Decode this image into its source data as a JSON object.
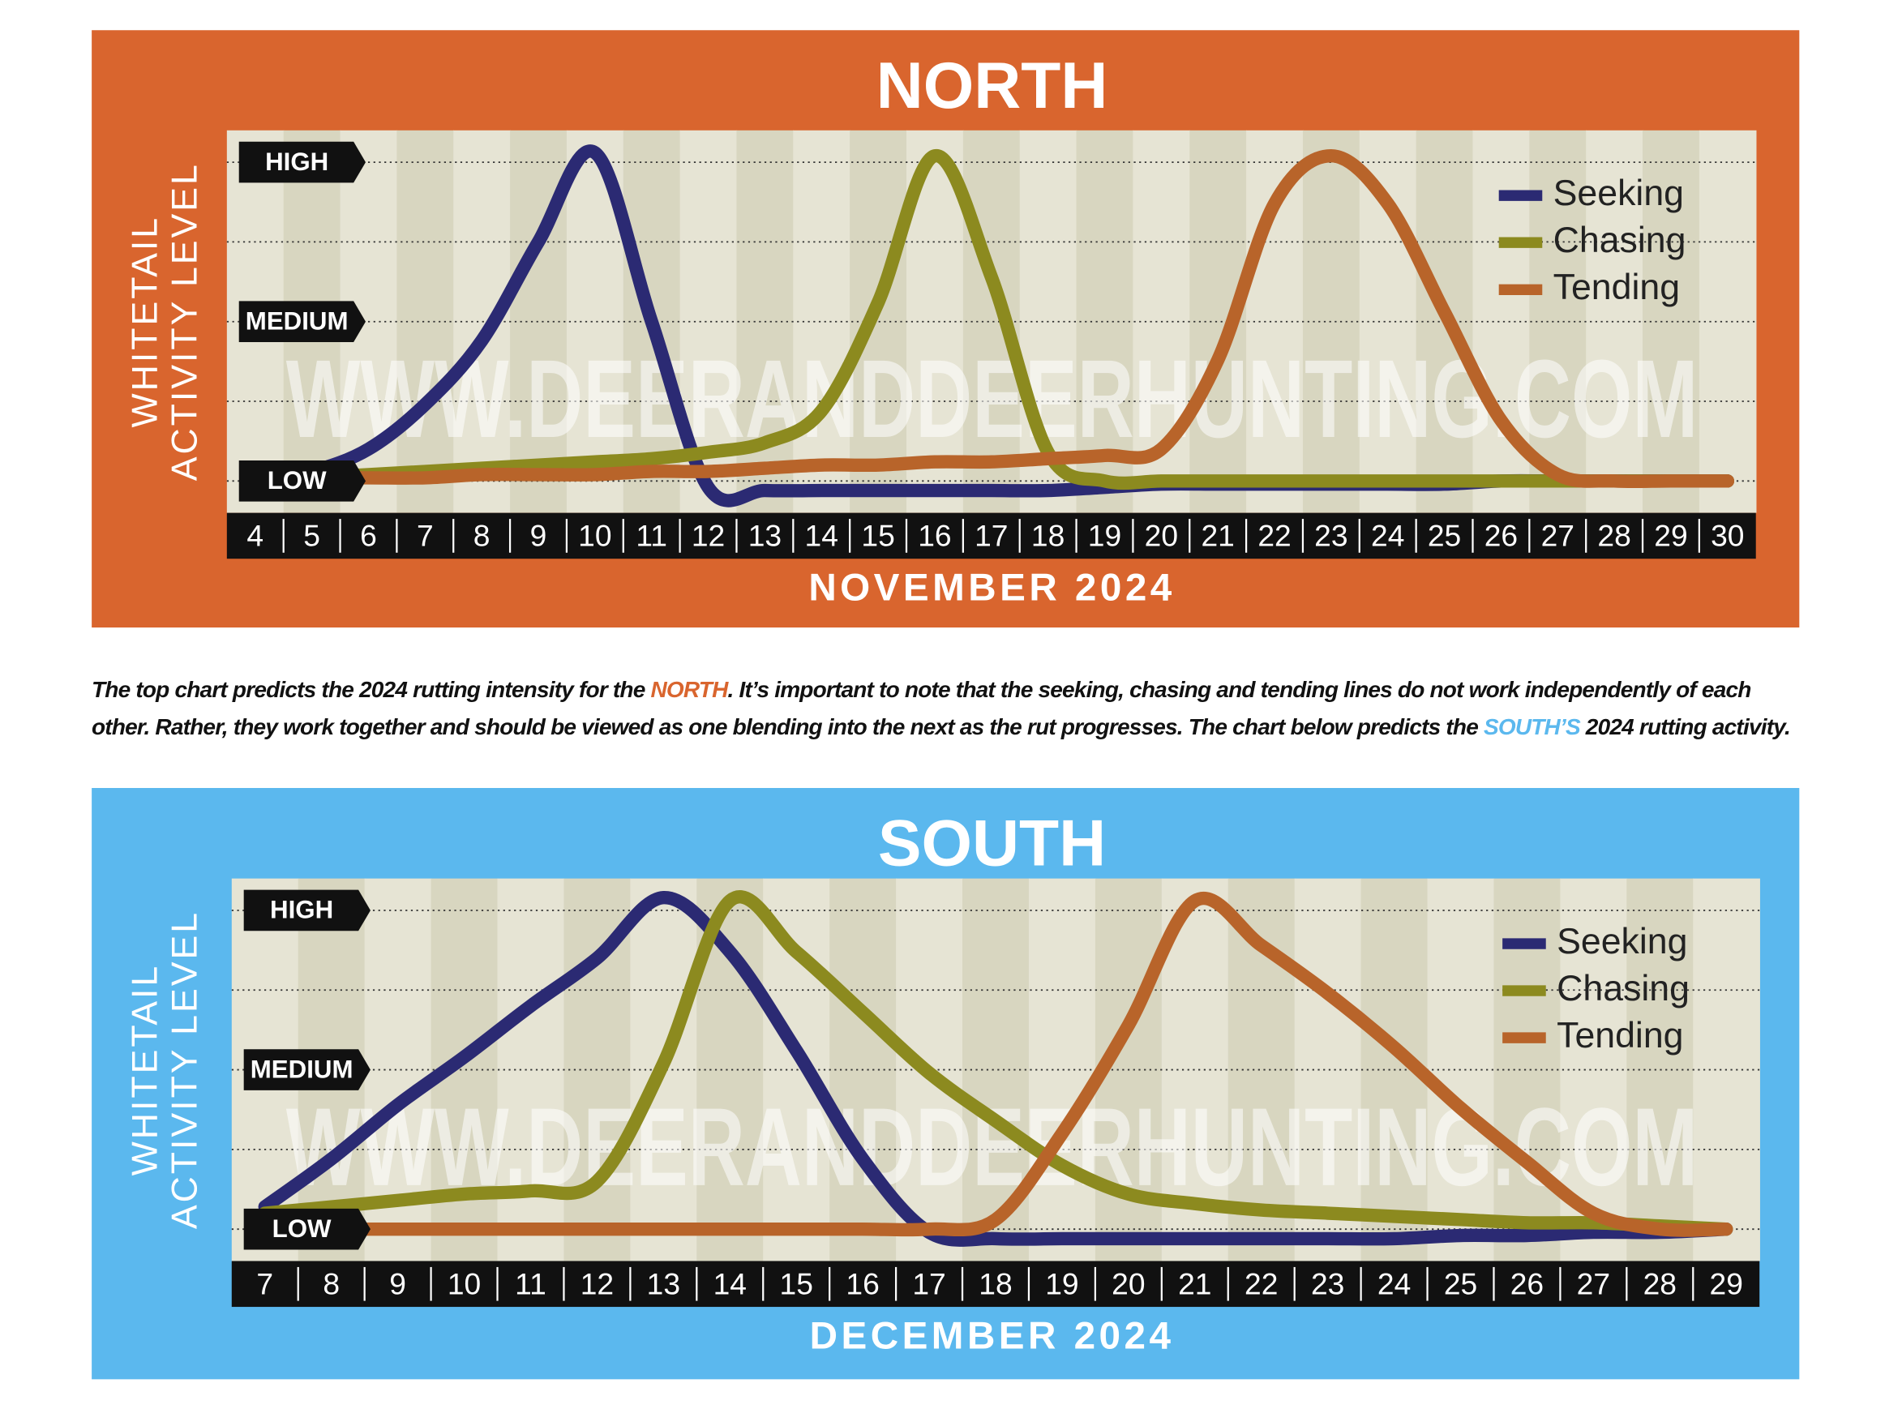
{
  "chart_data": [
    {
      "type": "line",
      "title": "NORTH",
      "background": "#d9652e",
      "ylabel": [
        "WHITETAIL",
        "ACTIVITY LEVEL"
      ],
      "xlabel": "NOVEMBER 2024",
      "watermark": "WWW.DEERANDDEERHUNTING.COM",
      "x": [
        4,
        5,
        6,
        7,
        8,
        9,
        10,
        11,
        12,
        13,
        14,
        15,
        16,
        17,
        18,
        19,
        20,
        21,
        22,
        23,
        24,
        25,
        26,
        27,
        28,
        29,
        30
      ],
      "xlim": [
        3.5,
        30.5
      ],
      "ylim": [
        -10,
        110
      ],
      "yticks": [
        {
          "value": 0,
          "label": "LOW"
        },
        {
          "value": 50,
          "label": "MEDIUM"
        },
        {
          "value": 100,
          "label": "HIGH"
        }
      ],
      "ygrid": [
        0,
        25,
        50,
        75,
        100
      ],
      "legend": "upper right",
      "series": [
        {
          "name": "Seeking",
          "color": "#2b2a73",
          "values": [
            0,
            3,
            10,
            24,
            44,
            75,
            103,
            50,
            -2,
            -3,
            -3,
            -3,
            -3,
            -3,
            -3,
            -2,
            -1,
            -1,
            -1,
            -1,
            -1,
            -1,
            0,
            0,
            0,
            0,
            0
          ]
        },
        {
          "name": "Chasing",
          "color": "#8c8a1f",
          "values": [
            0,
            1,
            2,
            3,
            4,
            5,
            6,
            7,
            9,
            12,
            22,
            56,
            102,
            64,
            9,
            0,
            0,
            0,
            0,
            0,
            0,
            0,
            0,
            0,
            0,
            0,
            0
          ]
        },
        {
          "name": "Tending",
          "color": "#b8642a",
          "values": [
            0,
            1,
            1,
            1,
            2,
            2,
            2,
            3,
            3,
            4,
            5,
            5,
            6,
            6,
            7,
            8,
            10,
            38,
            87,
            102,
            87,
            53,
            19,
            2,
            0,
            0,
            0
          ]
        }
      ]
    },
    {
      "type": "line",
      "title": "SOUTH",
      "background": "#5bb8ee",
      "ylabel": [
        "WHITETAIL",
        "ACTIVITY LEVEL"
      ],
      "xlabel": "DECEMBER 2024",
      "watermark": "WWW.DEERANDDEERHUNTING.COM",
      "x": [
        7,
        8,
        9,
        10,
        11,
        12,
        13,
        14,
        15,
        16,
        17,
        18,
        19,
        20,
        21,
        22,
        23,
        24,
        25,
        26,
        27,
        28,
        29
      ],
      "xlim": [
        6.5,
        29.5
      ],
      "ylim": [
        -10,
        110
      ],
      "yticks": [
        {
          "value": 0,
          "label": "LOW"
        },
        {
          "value": 50,
          "label": "MEDIUM"
        },
        {
          "value": 100,
          "label": "HIGH"
        }
      ],
      "ygrid": [
        0,
        25,
        50,
        75,
        100
      ],
      "legend": "upper right",
      "series": [
        {
          "name": "Seeking",
          "color": "#2b2a73",
          "values": [
            7,
            22,
            39,
            54,
            70,
            85,
            104,
            87,
            56,
            22,
            -1,
            -3,
            -3,
            -3,
            -3,
            -3,
            -3,
            -3,
            -2,
            -2,
            -1,
            -1,
            0
          ]
        },
        {
          "name": "Chasing",
          "color": "#8c8a1f",
          "values": [
            5,
            7,
            9,
            11,
            12,
            15,
            52,
            103,
            87,
            68,
            49,
            34,
            20,
            11,
            8,
            6,
            5,
            4,
            3,
            2,
            2,
            1,
            0
          ]
        },
        {
          "name": "Tending",
          "color": "#b8642a",
          "values": [
            0,
            0,
            0,
            0,
            0,
            0,
            0,
            0,
            0,
            0,
            0,
            3,
            30,
            64,
            103,
            89,
            74,
            57,
            38,
            21,
            5,
            0,
            0
          ]
        }
      ]
    }
  ],
  "note": [
    "The top chart predicts the 2024 rutting intensity for the ",
    "NORTH",
    ". It’s important to note that the seeking, chasing and tending lines do not work independently of each other. Rather, they work together and should be viewed as one blending into the next as the rut progresses. The chart below predicts the ",
    "SOUTH’S",
    " 2024 rutting activity."
  ]
}
